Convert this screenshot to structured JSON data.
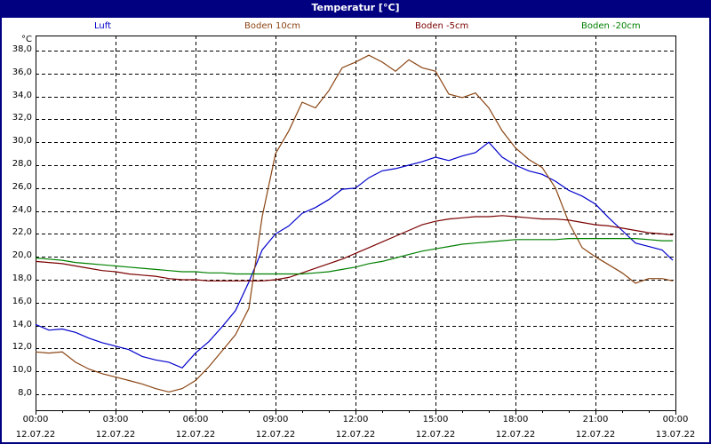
{
  "window": {
    "title": "Temperatur [°C]"
  },
  "chart_data": {
    "type": "line",
    "title": "Temperatur [°C]",
    "ylabel": "°C",
    "xlabel": "",
    "ylim": [
      6.8,
      39.3
    ],
    "grid": true,
    "legend_position": "top",
    "y_ticks": [
      "38,0",
      "36,0",
      "34,0",
      "32,0",
      "30,0",
      "28,0",
      "26,0",
      "24,0",
      "22,0",
      "20,0",
      "18,0",
      "16,0",
      "14,0",
      "12,0",
      "10,0",
      "8,0"
    ],
    "x_ticks": [
      {
        "time": "00:00",
        "date": "12.07.22"
      },
      {
        "time": "03:00",
        "date": "12.07.22"
      },
      {
        "time": "06:00",
        "date": "12.07.22"
      },
      {
        "time": "09:00",
        "date": "12.07.22"
      },
      {
        "time": "12:00",
        "date": "12.07.22"
      },
      {
        "time": "15:00",
        "date": "12.07.22"
      },
      {
        "time": "18:00",
        "date": "12.07.22"
      },
      {
        "time": "21:00",
        "date": "12.07.22"
      },
      {
        "time": "00:00",
        "date": "13.07.22"
      }
    ],
    "x_hours": [
      0,
      0.5,
      1,
      1.5,
      2,
      2.5,
      3,
      3.5,
      4,
      4.5,
      5,
      5.5,
      6,
      6.5,
      7,
      7.5,
      8,
      8.5,
      9,
      9.5,
      10,
      10.5,
      11,
      11.5,
      12,
      12.5,
      13,
      13.5,
      14,
      14.5,
      15,
      15.5,
      16,
      16.5,
      17,
      17.5,
      18,
      18.5,
      19,
      19.5,
      20,
      20.5,
      21,
      21.5,
      22,
      22.5,
      23,
      23.5,
      23.9
    ],
    "series": [
      {
        "name": "Luft",
        "color": "#0000cc",
        "values": [
          14.1,
          13.6,
          13.7,
          13.4,
          12.9,
          12.5,
          12.2,
          11.9,
          11.3,
          11.0,
          10.8,
          10.3,
          11.6,
          12.6,
          13.9,
          15.3,
          17.8,
          20.6,
          22.0,
          22.7,
          23.8,
          24.3,
          25.0,
          25.9,
          26.0,
          26.9,
          27.5,
          27.7,
          28.0,
          28.3,
          28.7,
          28.4,
          28.8,
          29.1,
          30.0,
          28.7,
          28.0,
          27.5,
          27.2,
          26.6,
          25.8,
          25.3,
          24.6,
          23.4,
          22.3,
          21.2,
          20.9,
          20.6,
          19.7
        ]
      },
      {
        "name": "Boden 10cm",
        "color": "#8b4513",
        "values": [
          11.7,
          11.6,
          11.7,
          10.8,
          10.2,
          9.8,
          9.5,
          9.2,
          8.9,
          8.5,
          8.2,
          8.5,
          9.2,
          10.4,
          11.8,
          13.2,
          15.5,
          23.5,
          29.0,
          31.0,
          33.5,
          33.0,
          34.5,
          36.5,
          37.0,
          37.6,
          37.0,
          36.2,
          37.2,
          36.5,
          36.2,
          34.2,
          33.9,
          34.3,
          33.0,
          31.0,
          29.5,
          28.5,
          27.8,
          26.0,
          23.0,
          20.8,
          20.0,
          19.3,
          18.6,
          17.7,
          18.1,
          18.1,
          17.9
        ]
      },
      {
        "name": "Boden -5cm",
        "color": "#7b0000",
        "values": [
          19.6,
          19.5,
          19.4,
          19.2,
          19.0,
          18.8,
          18.7,
          18.5,
          18.4,
          18.3,
          18.1,
          18.0,
          18.0,
          17.9,
          17.9,
          17.9,
          17.9,
          17.9,
          18.0,
          18.2,
          18.6,
          19.0,
          19.4,
          19.8,
          20.3,
          20.8,
          21.3,
          21.8,
          22.3,
          22.8,
          23.1,
          23.3,
          23.4,
          23.5,
          23.5,
          23.6,
          23.5,
          23.4,
          23.3,
          23.3,
          23.2,
          23.0,
          22.8,
          22.7,
          22.5,
          22.3,
          22.1,
          22.0,
          21.9
        ]
      },
      {
        "name": "Boden -20cm",
        "color": "#008000",
        "values": [
          19.9,
          19.8,
          19.7,
          19.5,
          19.4,
          19.3,
          19.2,
          19.1,
          19.0,
          18.9,
          18.8,
          18.7,
          18.7,
          18.6,
          18.6,
          18.5,
          18.5,
          18.5,
          18.5,
          18.5,
          18.5,
          18.6,
          18.7,
          18.9,
          19.1,
          19.4,
          19.6,
          19.9,
          20.2,
          20.5,
          20.7,
          20.9,
          21.1,
          21.2,
          21.3,
          21.4,
          21.5,
          21.5,
          21.5,
          21.5,
          21.6,
          21.6,
          21.6,
          21.6,
          21.6,
          21.6,
          21.5,
          21.4,
          21.4
        ]
      }
    ]
  },
  "legend": [
    {
      "label": "Luft",
      "color": "#0000cc"
    },
    {
      "label": "Boden 10cm",
      "color": "#8b4513"
    },
    {
      "label": "Boden -5cm",
      "color": "#7b0000"
    },
    {
      "label": "Boden -20cm",
      "color": "#008000"
    }
  ]
}
